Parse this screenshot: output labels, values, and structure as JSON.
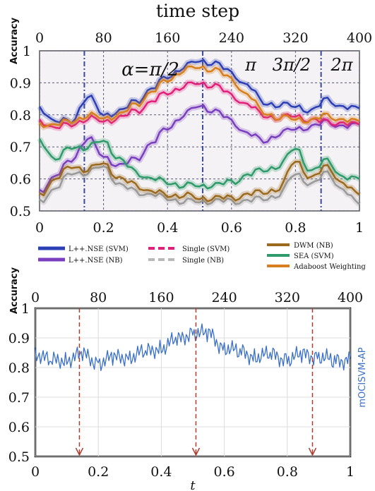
{
  "chart_data": [
    {
      "type": "line",
      "title": "time step",
      "ylabel": "Accuracy",
      "x": [
        0,
        0.05,
        0.1,
        0.15,
        0.2,
        0.25,
        0.3,
        0.35,
        0.4,
        0.45,
        0.5,
        0.55,
        0.6,
        0.65,
        0.7,
        0.75,
        0.8,
        0.85,
        0.9,
        0.95,
        1.0
      ],
      "xlim": [
        0,
        1
      ],
      "ylim": [
        0.5,
        1
      ],
      "xticks": [
        "0",
        "0.2",
        "0.4",
        "0.6",
        "0.8",
        "1"
      ],
      "yticks": [
        "0.5",
        "0.6",
        "0.7",
        "0.8",
        "0.9",
        "1"
      ],
      "top_ticks": [
        "0",
        "80",
        "160",
        "240",
        "320",
        "400"
      ],
      "annotations": [
        "α=π/2",
        "π",
        "3π/2",
        "2π"
      ],
      "vlines": [
        0.14,
        0.51,
        0.88
      ],
      "grid": true,
      "series": [
        {
          "name": "L++.NSE (SVM)",
          "color": "#2d3fb5",
          "values": [
            0.82,
            0.78,
            0.78,
            0.86,
            0.8,
            0.81,
            0.84,
            0.88,
            0.92,
            0.95,
            0.97,
            0.96,
            0.93,
            0.89,
            0.84,
            0.83,
            0.83,
            0.81,
            0.85,
            0.82,
            0.82
          ]
        },
        {
          "name": "L++.NSE (NB)",
          "color": "#7a3fbf",
          "values": [
            0.56,
            0.61,
            0.66,
            0.73,
            0.67,
            0.64,
            0.66,
            0.71,
            0.76,
            0.8,
            0.83,
            0.81,
            0.78,
            0.74,
            0.72,
            0.74,
            0.76,
            0.76,
            0.78,
            0.76,
            0.77
          ]
        },
        {
          "name": "Single (SVM)",
          "color": "#e0207a",
          "values": [
            0.78,
            0.76,
            0.77,
            0.79,
            0.78,
            0.79,
            0.81,
            0.84,
            0.87,
            0.89,
            0.9,
            0.89,
            0.86,
            0.83,
            0.8,
            0.79,
            0.8,
            0.78,
            0.78,
            0.77,
            0.77
          ]
        },
        {
          "name": "Single (NB)",
          "color": "#9a9a9a",
          "values": [
            0.53,
            0.57,
            0.62,
            0.62,
            0.64,
            0.58,
            0.56,
            0.55,
            0.54,
            0.53,
            0.53,
            0.53,
            0.53,
            0.53,
            0.54,
            0.55,
            0.62,
            0.58,
            0.62,
            0.56,
            0.52
          ]
        },
        {
          "name": "DWM (NB)",
          "color": "#9c6a1e",
          "values": [
            0.55,
            0.6,
            0.64,
            0.63,
            0.65,
            0.6,
            0.58,
            0.56,
            0.55,
            0.55,
            0.54,
            0.54,
            0.54,
            0.55,
            0.56,
            0.57,
            0.66,
            0.6,
            0.64,
            0.58,
            0.55
          ]
        },
        {
          "name": "SEA (SVM)",
          "color": "#2f9a6a",
          "values": [
            0.72,
            0.66,
            0.7,
            0.7,
            0.72,
            0.66,
            0.62,
            0.6,
            0.59,
            0.58,
            0.58,
            0.58,
            0.59,
            0.61,
            0.63,
            0.64,
            0.7,
            0.62,
            0.66,
            0.6,
            0.6
          ]
        },
        {
          "name": "Adaboost Weighting",
          "color": "#d77f1e",
          "values": [
            0.77,
            0.77,
            0.78,
            0.8,
            0.79,
            0.8,
            0.83,
            0.87,
            0.91,
            0.94,
            0.95,
            0.94,
            0.91,
            0.86,
            0.81,
            0.79,
            0.79,
            0.78,
            0.8,
            0.78,
            0.78
          ]
        }
      ]
    },
    {
      "type": "line",
      "ylabel": "Accuracy",
      "xlabel": "t",
      "xlim": [
        0,
        1
      ],
      "ylim": [
        0.5,
        1
      ],
      "xticks": [
        "0",
        "0.2",
        "0.4",
        "0.6",
        "0.8",
        "1"
      ],
      "yticks": [
        "0.5",
        "0.6",
        "0.7",
        "0.8",
        "0.9",
        "1"
      ],
      "top_ticks": [
        "0",
        "80",
        "160",
        "240",
        "320",
        "400"
      ],
      "arrows": [
        0.14,
        0.51,
        0.88
      ],
      "grid": true,
      "series": [
        {
          "name": "mOCISVM-AP",
          "color": "#3a6fc9",
          "x": [
            0,
            0.05,
            0.1,
            0.15,
            0.2,
            0.25,
            0.3,
            0.35,
            0.4,
            0.45,
            0.5,
            0.55,
            0.6,
            0.65,
            0.7,
            0.75,
            0.8,
            0.85,
            0.9,
            0.95,
            1.0
          ],
          "values": [
            0.85,
            0.82,
            0.83,
            0.84,
            0.82,
            0.83,
            0.84,
            0.85,
            0.87,
            0.89,
            0.92,
            0.91,
            0.87,
            0.85,
            0.84,
            0.84,
            0.83,
            0.84,
            0.84,
            0.82,
            0.83
          ]
        }
      ]
    }
  ]
}
